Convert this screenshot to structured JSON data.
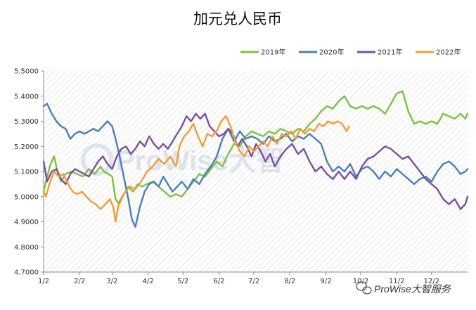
{
  "chart_data": {
    "type": "line",
    "title": "加元兑人民币",
    "xlabel": "",
    "ylabel": "",
    "ylim": [
      4.7,
      5.5
    ],
    "y_ticks": [
      "5.5000",
      "5.4000",
      "5.3000",
      "5.2000",
      "5.1000",
      "5.0000",
      "4.9000",
      "4.8000",
      "4.7000"
    ],
    "x_ticks": [
      "1/2",
      "2/2",
      "3/2",
      "4/2",
      "5/2",
      "6/2",
      "7/2",
      "8/2",
      "9/2",
      "10/2",
      "11/2",
      "12/2"
    ],
    "x_tick_days": [
      1,
      32,
      60,
      91,
      121,
      152,
      182,
      213,
      244,
      274,
      305,
      335
    ],
    "x_range": [
      1,
      366
    ],
    "grid": false,
    "background": "diagonal-hatch",
    "legend_position": "top-right",
    "series": [
      {
        "name": "2019年",
        "color": "#7cc242",
        "points": [
          [
            1,
            5.02
          ],
          [
            4,
            5.08
          ],
          [
            7,
            5.13
          ],
          [
            10,
            5.16
          ],
          [
            13,
            5.1
          ],
          [
            16,
            5.06
          ],
          [
            20,
            5.09
          ],
          [
            25,
            5.1
          ],
          [
            30,
            5.09
          ],
          [
            35,
            5.08
          ],
          [
            40,
            5.11
          ],
          [
            45,
            5.09
          ],
          [
            50,
            5.12
          ],
          [
            53,
            5.1
          ],
          [
            57,
            5.09
          ],
          [
            60,
            5.08
          ],
          [
            63,
            4.99
          ],
          [
            66,
            4.97
          ],
          [
            70,
            5.01
          ],
          [
            74,
            5.04
          ],
          [
            78,
            5.02
          ],
          [
            82,
            5.05
          ],
          [
            86,
            5.04
          ],
          [
            90,
            5.05
          ],
          [
            95,
            5.06
          ],
          [
            100,
            5.04
          ],
          [
            105,
            5.02
          ],
          [
            110,
            5.0
          ],
          [
            115,
            5.01
          ],
          [
            120,
            5.0
          ],
          [
            125,
            5.03
          ],
          [
            130,
            5.06
          ],
          [
            135,
            5.09
          ],
          [
            140,
            5.08
          ],
          [
            145,
            5.11
          ],
          [
            150,
            5.14
          ],
          [
            155,
            5.12
          ],
          [
            160,
            5.17
          ],
          [
            165,
            5.21
          ],
          [
            170,
            5.2
          ],
          [
            175,
            5.24
          ],
          [
            180,
            5.26
          ],
          [
            185,
            5.25
          ],
          [
            190,
            5.24
          ],
          [
            195,
            5.26
          ],
          [
            200,
            5.25
          ],
          [
            205,
            5.27
          ],
          [
            210,
            5.26
          ],
          [
            215,
            5.25
          ],
          [
            220,
            5.27
          ],
          [
            225,
            5.26
          ],
          [
            230,
            5.29
          ],
          [
            235,
            5.31
          ],
          [
            240,
            5.34
          ],
          [
            245,
            5.36
          ],
          [
            250,
            5.35
          ],
          [
            255,
            5.38
          ],
          [
            260,
            5.4
          ],
          [
            265,
            5.36
          ],
          [
            270,
            5.35
          ],
          [
            275,
            5.36
          ],
          [
            280,
            5.35
          ],
          [
            285,
            5.36
          ],
          [
            290,
            5.35
          ],
          [
            295,
            5.33
          ],
          [
            300,
            5.37
          ],
          [
            305,
            5.41
          ],
          [
            310,
            5.42
          ],
          [
            315,
            5.34
          ],
          [
            320,
            5.29
          ],
          [
            325,
            5.3
          ],
          [
            330,
            5.29
          ],
          [
            335,
            5.3
          ],
          [
            340,
            5.29
          ],
          [
            345,
            5.33
          ],
          [
            350,
            5.32
          ],
          [
            355,
            5.31
          ],
          [
            360,
            5.33
          ],
          [
            364,
            5.31
          ],
          [
            366,
            5.33
          ]
        ]
      },
      {
        "name": "2020年",
        "color": "#4a7ebb",
        "points": [
          [
            1,
            5.36
          ],
          [
            4,
            5.37
          ],
          [
            8,
            5.33
          ],
          [
            12,
            5.3
          ],
          [
            16,
            5.28
          ],
          [
            20,
            5.27
          ],
          [
            24,
            5.23
          ],
          [
            28,
            5.25
          ],
          [
            32,
            5.26
          ],
          [
            36,
            5.25
          ],
          [
            40,
            5.26
          ],
          [
            44,
            5.27
          ],
          [
            48,
            5.26
          ],
          [
            52,
            5.28
          ],
          [
            56,
            5.3
          ],
          [
            60,
            5.28
          ],
          [
            63,
            5.23
          ],
          [
            66,
            5.17
          ],
          [
            70,
            5.08
          ],
          [
            74,
            4.99
          ],
          [
            77,
            4.91
          ],
          [
            80,
            4.88
          ],
          [
            84,
            4.96
          ],
          [
            88,
            5.02
          ],
          [
            92,
            5.05
          ],
          [
            96,
            5.06
          ],
          [
            100,
            5.04
          ],
          [
            104,
            5.08
          ],
          [
            108,
            5.05
          ],
          [
            112,
            5.02
          ],
          [
            116,
            5.04
          ],
          [
            120,
            5.06
          ],
          [
            125,
            5.03
          ],
          [
            130,
            5.07
          ],
          [
            135,
            5.05
          ],
          [
            140,
            5.09
          ],
          [
            145,
            5.12
          ],
          [
            150,
            5.16
          ],
          [
            155,
            5.23
          ],
          [
            160,
            5.27
          ],
          [
            165,
            5.22
          ],
          [
            170,
            5.26
          ],
          [
            175,
            5.23
          ],
          [
            180,
            5.24
          ],
          [
            185,
            5.23
          ],
          [
            190,
            5.21
          ],
          [
            195,
            5.24
          ],
          [
            200,
            5.22
          ],
          [
            205,
            5.23
          ],
          [
            210,
            5.25
          ],
          [
            215,
            5.22
          ],
          [
            220,
            5.24
          ],
          [
            225,
            5.23
          ],
          [
            230,
            5.25
          ],
          [
            235,
            5.23
          ],
          [
            240,
            5.21
          ],
          [
            245,
            5.14
          ],
          [
            250,
            5.1
          ],
          [
            255,
            5.12
          ],
          [
            260,
            5.1
          ],
          [
            265,
            5.13
          ],
          [
            270,
            5.08
          ],
          [
            275,
            5.11
          ],
          [
            280,
            5.12
          ],
          [
            285,
            5.1
          ],
          [
            290,
            5.07
          ],
          [
            295,
            5.1
          ],
          [
            300,
            5.08
          ],
          [
            305,
            5.11
          ],
          [
            310,
            5.09
          ],
          [
            315,
            5.07
          ],
          [
            320,
            5.05
          ],
          [
            325,
            5.07
          ],
          [
            330,
            5.08
          ],
          [
            335,
            5.06
          ],
          [
            340,
            5.1
          ],
          [
            345,
            5.13
          ],
          [
            350,
            5.14
          ],
          [
            355,
            5.12
          ],
          [
            360,
            5.09
          ],
          [
            364,
            5.1
          ],
          [
            366,
            5.11
          ]
        ]
      },
      {
        "name": "2021年",
        "color": "#7a4f9c",
        "points": [
          [
            1,
            5.14
          ],
          [
            4,
            5.06
          ],
          [
            8,
            5.1
          ],
          [
            12,
            5.11
          ],
          [
            16,
            5.07
          ],
          [
            20,
            5.05
          ],
          [
            24,
            5.09
          ],
          [
            28,
            5.11
          ],
          [
            32,
            5.1
          ],
          [
            36,
            5.09
          ],
          [
            40,
            5.08
          ],
          [
            44,
            5.11
          ],
          [
            48,
            5.14
          ],
          [
            52,
            5.16
          ],
          [
            56,
            5.13
          ],
          [
            60,
            5.11
          ],
          [
            64,
            5.16
          ],
          [
            68,
            5.19
          ],
          [
            72,
            5.2
          ],
          [
            76,
            5.17
          ],
          [
            80,
            5.19
          ],
          [
            84,
            5.22
          ],
          [
            88,
            5.2
          ],
          [
            92,
            5.24
          ],
          [
            96,
            5.21
          ],
          [
            100,
            5.19
          ],
          [
            104,
            5.21
          ],
          [
            108,
            5.19
          ],
          [
            112,
            5.22
          ],
          [
            116,
            5.25
          ],
          [
            120,
            5.28
          ],
          [
            124,
            5.32
          ],
          [
            128,
            5.3
          ],
          [
            132,
            5.33
          ],
          [
            136,
            5.31
          ],
          [
            140,
            5.33
          ],
          [
            144,
            5.28
          ],
          [
            148,
            5.26
          ],
          [
            152,
            5.24
          ],
          [
            156,
            5.25
          ],
          [
            160,
            5.27
          ],
          [
            164,
            5.25
          ],
          [
            168,
            5.2
          ],
          [
            172,
            5.23
          ],
          [
            176,
            5.2
          ],
          [
            180,
            5.16
          ],
          [
            184,
            5.21
          ],
          [
            188,
            5.18
          ],
          [
            192,
            5.14
          ],
          [
            196,
            5.17
          ],
          [
            200,
            5.12
          ],
          [
            205,
            5.16
          ],
          [
            210,
            5.19
          ],
          [
            215,
            5.21
          ],
          [
            220,
            5.17
          ],
          [
            225,
            5.19
          ],
          [
            230,
            5.14
          ],
          [
            235,
            5.1
          ],
          [
            240,
            5.12
          ],
          [
            245,
            5.09
          ],
          [
            250,
            5.07
          ],
          [
            255,
            5.1
          ],
          [
            260,
            5.07
          ],
          [
            265,
            5.1
          ],
          [
            270,
            5.07
          ],
          [
            275,
            5.12
          ],
          [
            280,
            5.15
          ],
          [
            285,
            5.16
          ],
          [
            290,
            5.18
          ],
          [
            295,
            5.2
          ],
          [
            300,
            5.19
          ],
          [
            305,
            5.17
          ],
          [
            310,
            5.15
          ],
          [
            315,
            5.16
          ],
          [
            320,
            5.13
          ],
          [
            325,
            5.1
          ],
          [
            330,
            5.07
          ],
          [
            335,
            5.05
          ],
          [
            340,
            5.03
          ],
          [
            345,
            4.99
          ],
          [
            350,
            4.97
          ],
          [
            355,
            4.99
          ],
          [
            360,
            4.95
          ],
          [
            364,
            4.97
          ],
          [
            366,
            5.0
          ]
        ]
      },
      {
        "name": "2022年",
        "color": "#f39c35",
        "points": [
          [
            1,
            5.02
          ],
          [
            3,
            5.0
          ],
          [
            6,
            5.05
          ],
          [
            10,
            5.1
          ],
          [
            14,
            5.08
          ],
          [
            18,
            5.09
          ],
          [
            22,
            5.05
          ],
          [
            26,
            5.02
          ],
          [
            30,
            5.01
          ],
          [
            34,
            5.02
          ],
          [
            38,
            5.0
          ],
          [
            42,
            4.98
          ],
          [
            46,
            4.97
          ],
          [
            50,
            4.95
          ],
          [
            54,
            4.97
          ],
          [
            58,
            4.99
          ],
          [
            61,
            4.96
          ],
          [
            63,
            4.9
          ],
          [
            66,
            4.98
          ],
          [
            70,
            5.01
          ],
          [
            75,
            5.04
          ],
          [
            80,
            5.03
          ],
          [
            85,
            5.06
          ],
          [
            90,
            5.1
          ],
          [
            95,
            5.12
          ],
          [
            100,
            5.15
          ],
          [
            105,
            5.13
          ],
          [
            110,
            5.16
          ],
          [
            115,
            5.12
          ],
          [
            118,
            5.2
          ],
          [
            122,
            5.24
          ],
          [
            126,
            5.26
          ],
          [
            130,
            5.29
          ],
          [
            134,
            5.24
          ],
          [
            138,
            5.2
          ],
          [
            142,
            5.25
          ],
          [
            146,
            5.24
          ],
          [
            150,
            5.26
          ],
          [
            154,
            5.3
          ],
          [
            158,
            5.32
          ],
          [
            162,
            5.28
          ],
          [
            166,
            5.22
          ],
          [
            170,
            5.18
          ],
          [
            174,
            5.16
          ],
          [
            178,
            5.2
          ],
          [
            182,
            5.18
          ],
          [
            186,
            5.2
          ],
          [
            190,
            5.22
          ],
          [
            194,
            5.2
          ],
          [
            198,
            5.24
          ],
          [
            202,
            5.21
          ],
          [
            206,
            5.25
          ],
          [
            210,
            5.24
          ],
          [
            214,
            5.26
          ],
          [
            218,
            5.23
          ],
          [
            222,
            5.27
          ],
          [
            226,
            5.25
          ],
          [
            230,
            5.27
          ],
          [
            234,
            5.26
          ],
          [
            238,
            5.29
          ],
          [
            242,
            5.28
          ],
          [
            246,
            5.3
          ],
          [
            250,
            5.29
          ],
          [
            254,
            5.3
          ],
          [
            258,
            5.29
          ],
          [
            262,
            5.26
          ],
          [
            264,
            5.28
          ]
        ]
      }
    ]
  },
  "watermark": "ProWise大智",
  "corner_caption": "ProWise大智服务"
}
